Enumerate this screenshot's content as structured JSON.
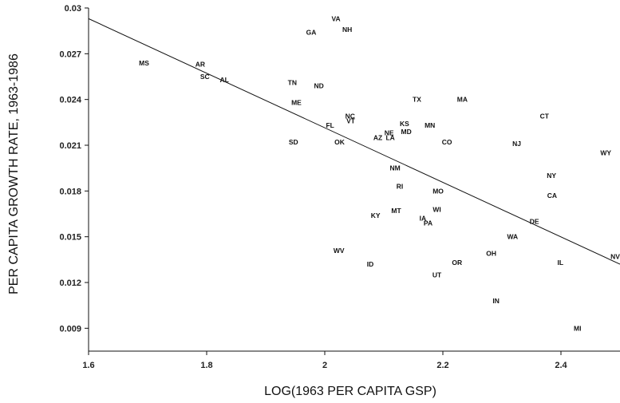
{
  "chart_data": {
    "type": "scatter",
    "title": "",
    "xlabel": "LOG(1963 PER CAPITA GSP)",
    "ylabel": "PER CAPITA GROWTH RATE, 1963-1986",
    "xlim": [
      1.6,
      2.5
    ],
    "ylim": [
      0.0075,
      0.03
    ],
    "x_ticks": [
      "1.6",
      "1.8",
      "2",
      "2.2",
      "2.4"
    ],
    "y_ticks": [
      "0.009",
      "0.012",
      "0.015",
      "0.018",
      "0.021",
      "0.024",
      "0.027",
      "0.03"
    ],
    "x_tick_values": [
      1.6,
      1.8,
      2.0,
      2.2,
      2.4
    ],
    "y_tick_values": [
      0.009,
      0.012,
      0.015,
      0.018,
      0.021,
      0.024,
      0.027,
      0.03
    ],
    "grid": false,
    "fit_line": {
      "x": [
        1.6,
        2.5
      ],
      "y": [
        0.0293,
        0.0132
      ]
    },
    "points": [
      {
        "label": "VA",
        "x": 2.019,
        "y": 0.0293
      },
      {
        "label": "NH",
        "x": 2.038,
        "y": 0.0286
      },
      {
        "label": "GA",
        "x": 1.977,
        "y": 0.0284
      },
      {
        "label": "MS",
        "x": 1.694,
        "y": 0.0264
      },
      {
        "label": "AR",
        "x": 1.789,
        "y": 0.0263
      },
      {
        "label": "SC",
        "x": 1.797,
        "y": 0.0255
      },
      {
        "label": "AL",
        "x": 1.83,
        "y": 0.0253
      },
      {
        "label": "TN",
        "x": 1.945,
        "y": 0.0251
      },
      {
        "label": "ND",
        "x": 1.99,
        "y": 0.0249
      },
      {
        "label": "TX",
        "x": 2.156,
        "y": 0.024
      },
      {
        "label": "MA",
        "x": 2.233,
        "y": 0.024
      },
      {
        "label": "ME",
        "x": 1.952,
        "y": 0.0238
      },
      {
        "label": "CT",
        "x": 2.372,
        "y": 0.0229
      },
      {
        "label": "NC",
        "x": 2.043,
        "y": 0.0229
      },
      {
        "label": "VT",
        "x": 2.044,
        "y": 0.0226
      },
      {
        "label": "KS",
        "x": 2.135,
        "y": 0.0224
      },
      {
        "label": "MN",
        "x": 2.178,
        "y": 0.0223
      },
      {
        "label": "FL",
        "x": 2.009,
        "y": 0.0223
      },
      {
        "label": "NE",
        "x": 2.109,
        "y": 0.0218
      },
      {
        "label": "MD",
        "x": 2.138,
        "y": 0.0219
      },
      {
        "label": "AZ",
        "x": 2.09,
        "y": 0.0215
      },
      {
        "label": "LA",
        "x": 2.111,
        "y": 0.0215
      },
      {
        "label": "SD",
        "x": 1.947,
        "y": 0.0212
      },
      {
        "label": "OK",
        "x": 2.025,
        "y": 0.0212
      },
      {
        "label": "CO",
        "x": 2.207,
        "y": 0.0212
      },
      {
        "label": "NJ",
        "x": 2.325,
        "y": 0.0211
      },
      {
        "label": "WY",
        "x": 2.476,
        "y": 0.0205
      },
      {
        "label": "NM",
        "x": 2.119,
        "y": 0.0195
      },
      {
        "label": "NY",
        "x": 2.384,
        "y": 0.019
      },
      {
        "label": "RI",
        "x": 2.127,
        "y": 0.0183
      },
      {
        "label": "MO",
        "x": 2.192,
        "y": 0.018
      },
      {
        "label": "CA",
        "x": 2.385,
        "y": 0.0177
      },
      {
        "label": "WI",
        "x": 2.19,
        "y": 0.0168
      },
      {
        "label": "MT",
        "x": 2.121,
        "y": 0.0167
      },
      {
        "label": "KY",
        "x": 2.086,
        "y": 0.0164
      },
      {
        "label": "IA",
        "x": 2.166,
        "y": 0.0162
      },
      {
        "label": "DE",
        "x": 2.355,
        "y": 0.016
      },
      {
        "label": "PA",
        "x": 2.175,
        "y": 0.0159
      },
      {
        "label": "WA",
        "x": 2.318,
        "y": 0.015
      },
      {
        "label": "WV",
        "x": 2.024,
        "y": 0.0141
      },
      {
        "label": "OH",
        "x": 2.282,
        "y": 0.0139
      },
      {
        "label": "NV",
        "x": 2.492,
        "y": 0.0137
      },
      {
        "label": "ID",
        "x": 2.077,
        "y": 0.0132
      },
      {
        "label": "OR",
        "x": 2.224,
        "y": 0.0133
      },
      {
        "label": "IL",
        "x": 2.399,
        "y": 0.0133
      },
      {
        "label": "UT",
        "x": 2.19,
        "y": 0.0125
      },
      {
        "label": "IN",
        "x": 2.29,
        "y": 0.0108
      },
      {
        "label": "MI",
        "x": 2.428,
        "y": 0.009
      }
    ]
  }
}
